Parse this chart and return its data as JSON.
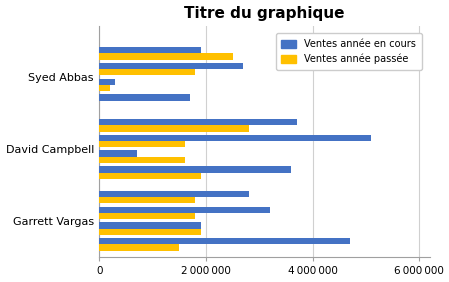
{
  "title": "Titre du graphique",
  "categories": [
    "Syed Abbas",
    "David Campbell",
    "Garrett Vargas"
  ],
  "legend_labels": [
    "Ventes année en cours",
    "Ventes année passée"
  ],
  "colors": [
    "#4472C4",
    "#FFC000"
  ],
  "values_current": [
    [
      1900000,
      2700000,
      300000,
      1700000
    ],
    [
      3700000,
      5100000,
      700000,
      3600000
    ],
    [
      2800000,
      3200000,
      1900000,
      4700000
    ]
  ],
  "values_past": [
    [
      2500000,
      1800000,
      200000,
      0
    ],
    [
      2800000,
      1600000,
      1600000,
      1900000
    ],
    [
      1800000,
      1800000,
      1900000,
      1500000
    ]
  ],
  "xlim": [
    0,
    6200000
  ],
  "xticks": [
    0,
    2000000,
    4000000,
    6000000
  ],
  "xtick_labels": [
    "0",
    "2 000 000",
    "4 000 000",
    "6 000 000"
  ],
  "bg_color": "#FFFFFF",
  "plot_bg": "#FFFFFF",
  "grid_color": "#D0D0D0",
  "title_fontsize": 11,
  "label_fontsize": 8,
  "tick_fontsize": 7.5
}
